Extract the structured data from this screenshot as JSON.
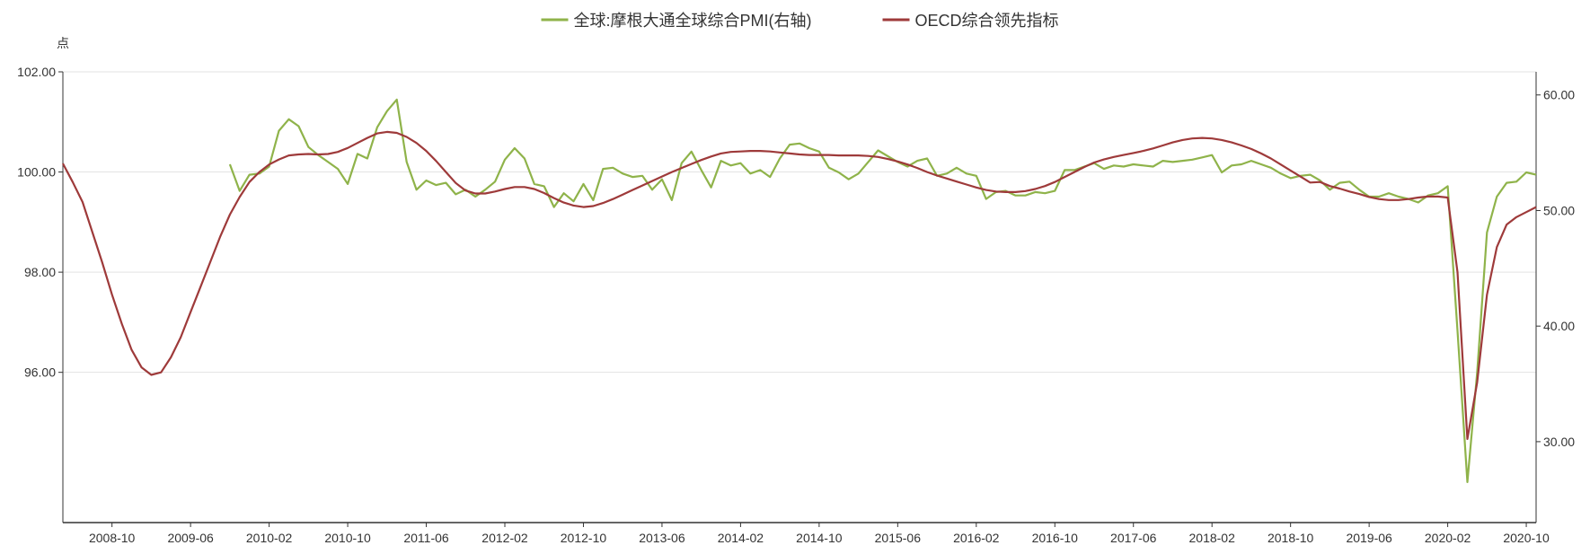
{
  "chart_data": {
    "type": "line",
    "title": "",
    "left_axis": {
      "unit_label": "点",
      "ylim": [
        93.0,
        102.0
      ],
      "ticks": [
        96,
        98,
        100,
        102
      ],
      "tick_labels": [
        "96.00",
        "98.00",
        "100.00",
        "102.00"
      ],
      "gridlines": true
    },
    "right_axis": {
      "ylim": [
        23.0,
        62.0
      ],
      "ticks": [
        30,
        40,
        50,
        60
      ],
      "tick_labels": [
        "30.00",
        "40.00",
        "50.00",
        "60.00"
      ]
    },
    "x_axis": {
      "start": "2008-05",
      "end": "2020-11",
      "tick_labels": [
        "2008-10",
        "2009-06",
        "2010-02",
        "2010-10",
        "2011-06",
        "2012-02",
        "2012-10",
        "2013-06",
        "2014-02",
        "2014-10",
        "2015-06",
        "2016-02",
        "2016-10",
        "2017-06",
        "2018-02",
        "2018-10",
        "2019-06",
        "2020-02",
        "2020-10"
      ]
    },
    "legend_position": "top-center",
    "series": [
      {
        "name": "全球:摩根大通全球综合PMI(右轴)",
        "axis": "right",
        "color": "#8fb34a",
        "start": "2009-10",
        "values": [
          54.0,
          51.7,
          53.1,
          53.2,
          53.8,
          56.9,
          57.9,
          57.3,
          55.5,
          54.8,
          54.2,
          53.6,
          52.3,
          54.9,
          54.5,
          57.2,
          58.6,
          59.6,
          54.2,
          51.8,
          52.6,
          52.2,
          52.4,
          51.4,
          51.8,
          51.2,
          51.8,
          52.5,
          54.4,
          55.4,
          54.5,
          52.3,
          52.1,
          50.3,
          51.5,
          50.8,
          52.3,
          50.9,
          53.6,
          53.7,
          53.2,
          52.9,
          53.0,
          51.8,
          52.7,
          50.9,
          54.1,
          55.1,
          53.5,
          52.0,
          54.3,
          53.9,
          54.1,
          53.2,
          53.5,
          52.9,
          54.5,
          55.7,
          55.8,
          55.4,
          55.1,
          53.7,
          53.3,
          52.7,
          53.2,
          54.2,
          55.2,
          54.7,
          54.2,
          53.8,
          54.3,
          54.5,
          53.0,
          53.2,
          53.7,
          53.2,
          53.0,
          51.0,
          51.6,
          51.7,
          51.3,
          51.3,
          51.6,
          51.5,
          51.7,
          53.5,
          53.5,
          53.8,
          54.1,
          53.6,
          53.9,
          53.8,
          54.0,
          53.9,
          53.8,
          54.3,
          54.2,
          54.3,
          54.4,
          54.6,
          54.8,
          53.3,
          53.9,
          54.0,
          54.3,
          54.0,
          53.7,
          53.2,
          52.8,
          53.0,
          53.1,
          52.6,
          51.8,
          52.4,
          52.5,
          51.8,
          51.2,
          51.2,
          51.5,
          51.2,
          51.0,
          50.7,
          51.3,
          51.5,
          52.1,
          39.6,
          26.5,
          36.0,
          48.1,
          51.2,
          52.4,
          52.5,
          53.3,
          53.1
        ]
      },
      {
        "name": "OECD综合领先指标",
        "axis": "left",
        "color": "#9e3a3a",
        "start": "2008-05",
        "values": [
          100.17,
          99.8,
          99.4,
          98.8,
          98.2,
          97.55,
          96.97,
          96.45,
          96.1,
          95.95,
          96.0,
          96.3,
          96.7,
          97.2,
          97.7,
          98.2,
          98.7,
          99.15,
          99.5,
          99.8,
          100.0,
          100.15,
          100.25,
          100.33,
          100.35,
          100.36,
          100.35,
          100.36,
          100.4,
          100.48,
          100.58,
          100.68,
          100.77,
          100.8,
          100.78,
          100.7,
          100.58,
          100.42,
          100.22,
          100.0,
          99.78,
          99.63,
          99.57,
          99.57,
          99.61,
          99.66,
          99.7,
          99.7,
          99.66,
          99.58,
          99.48,
          99.39,
          99.33,
          99.3,
          99.32,
          99.38,
          99.46,
          99.55,
          99.64,
          99.73,
          99.82,
          99.91,
          100.0,
          100.08,
          100.16,
          100.24,
          100.31,
          100.37,
          100.4,
          100.41,
          100.42,
          100.42,
          100.41,
          100.39,
          100.37,
          100.35,
          100.34,
          100.34,
          100.34,
          100.33,
          100.33,
          100.33,
          100.32,
          100.3,
          100.26,
          100.21,
          100.15,
          100.08,
          100.0,
          99.93,
          99.87,
          99.81,
          99.75,
          99.69,
          99.64,
          99.61,
          99.6,
          99.6,
          99.62,
          99.66,
          99.72,
          99.8,
          99.9,
          100.0,
          100.1,
          100.19,
          100.25,
          100.3,
          100.34,
          100.38,
          100.42,
          100.47,
          100.53,
          100.59,
          100.64,
          100.67,
          100.68,
          100.67,
          100.64,
          100.59,
          100.53,
          100.46,
          100.37,
          100.27,
          100.15,
          100.03,
          99.91,
          99.79,
          99.8,
          99.72,
          99.67,
          99.61,
          99.56,
          99.5,
          99.46,
          99.44,
          99.44,
          99.46,
          99.49,
          99.51,
          99.51,
          99.49,
          98.0,
          94.67,
          95.8,
          97.55,
          98.5,
          98.95,
          99.1,
          99.2,
          99.3
        ]
      }
    ]
  }
}
